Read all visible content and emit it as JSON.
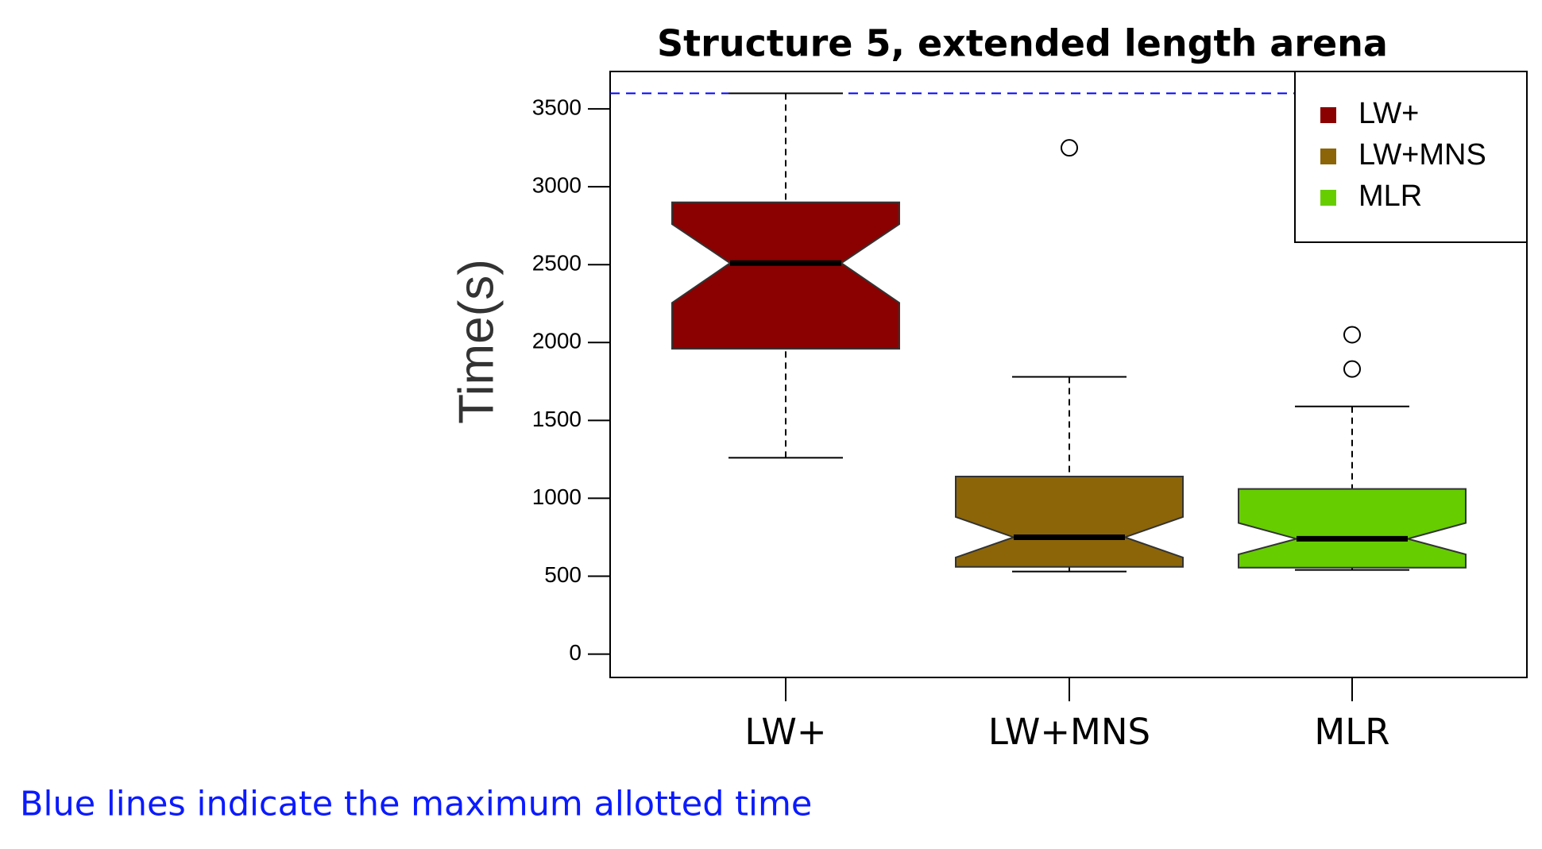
{
  "chart_data": {
    "type": "boxplot",
    "title": "Structure 5, extended length arena",
    "y_label": "Time(s)",
    "categories": [
      "LW+",
      "LW+MNS",
      "MLR"
    ],
    "boxes": [
      {
        "low": 1260,
        "q1": 1960,
        "median": 2510,
        "q3": 2900,
        "high": 3600,
        "notch_low": 2255,
        "notch_high": 2760,
        "outliers": [],
        "color": "#8b0000"
      },
      {
        "low": 530,
        "q1": 560,
        "median": 750,
        "q3": 1140,
        "high": 1780,
        "notch_low": 620,
        "notch_high": 880,
        "outliers": [
          3250
        ],
        "color": "#8b6508"
      },
      {
        "low": 540,
        "q1": 555,
        "median": 740,
        "q3": 1060,
        "high": 1590,
        "notch_low": 640,
        "notch_high": 842,
        "outliers": [
          1830,
          2050
        ],
        "color": "#66cd00"
      }
    ],
    "ylim": [
      -150,
      3740
    ],
    "yticks": [
      0,
      500,
      1000,
      1500,
      2000,
      2500,
      3000,
      3500
    ],
    "hline": {
      "value": 3600,
      "color": "#0000ff"
    },
    "legend": "top-right",
    "note": "Blue lines indicate the maximum allotted time"
  }
}
